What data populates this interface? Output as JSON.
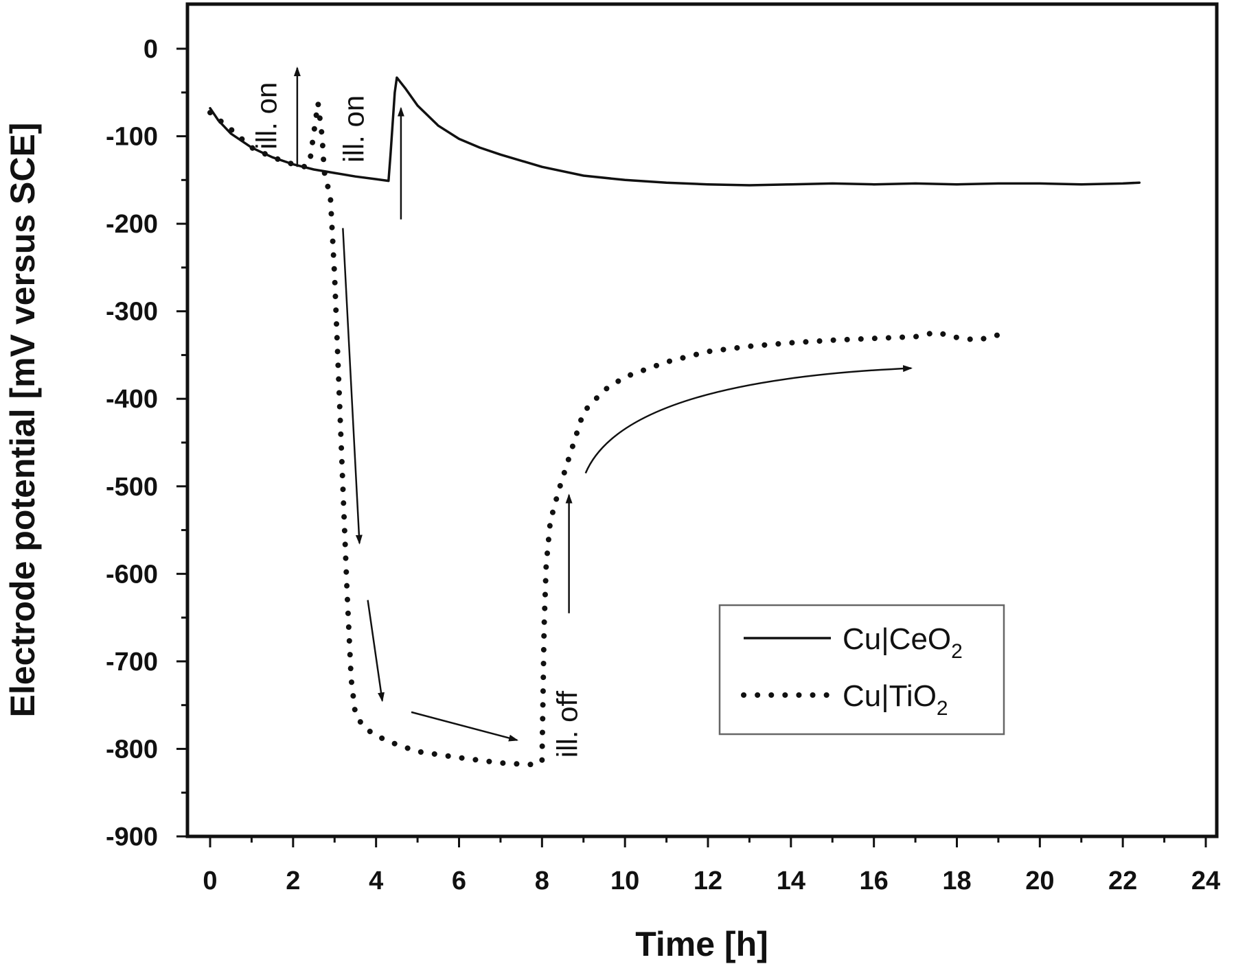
{
  "chart_data": {
    "type": "line",
    "xlabel": "Time [h]",
    "ylabel": "Electrode potential [mV versus SCE]",
    "xlim": [
      -1,
      24
    ],
    "ylim": [
      -900,
      50
    ],
    "xticks": [
      0,
      2,
      4,
      6,
      8,
      10,
      12,
      14,
      16,
      18,
      20,
      22,
      24
    ],
    "yticks": [
      0,
      -100,
      -200,
      -300,
      -400,
      -500,
      -600,
      -700,
      -800,
      -900
    ],
    "xtick_labels": [
      "0",
      "2",
      "4",
      "6",
      "8",
      "10",
      "12",
      "14",
      "16",
      "18",
      "20",
      "22",
      "24"
    ],
    "ytick_labels": [
      "0",
      "-100",
      "-200",
      "-300",
      "-400",
      "-500",
      "-600",
      "-700",
      "-800",
      "-900"
    ],
    "grid": false,
    "legend_position": "bottom-right",
    "series": [
      {
        "name": "Cu|CeO2",
        "legend_main": "Cu|CeO",
        "legend_sub": "2",
        "style": "solid",
        "color": "#111111",
        "x": [
          0,
          0.2,
          0.5,
          1,
          1.5,
          2,
          2.5,
          3,
          3.5,
          4,
          4.3,
          4.35,
          4.45,
          4.5,
          4.7,
          5,
          5.5,
          6,
          6.5,
          7,
          8,
          9,
          10,
          11,
          12,
          13,
          14,
          15,
          16,
          17,
          18,
          19,
          20,
          21,
          22,
          22.4
        ],
        "y": [
          -68,
          -82,
          -97,
          -113,
          -124,
          -132,
          -138,
          -142,
          -146,
          -149,
          -151,
          -120,
          -50,
          -33,
          -45,
          -65,
          -88,
          -103,
          -113,
          -121,
          -135,
          -145,
          -150,
          -153,
          -155,
          -156,
          -155,
          -154,
          -155,
          -154,
          -155,
          -154,
          -154,
          -155,
          -154,
          -153
        ]
      },
      {
        "name": "Cu|TiO2",
        "legend_main": "Cu|TiO",
        "legend_sub": "2",
        "style": "dotted",
        "color": "#111111",
        "x": [
          0,
          0.5,
          1,
          1.5,
          2,
          2.3,
          2.4,
          2.6,
          2.7,
          2.75,
          2.9,
          3.0,
          3.1,
          3.2,
          3.3,
          3.4,
          3.5,
          3.7,
          4.0,
          4.5,
          5,
          6,
          7,
          7.7,
          8.0,
          8.05,
          8.1,
          8.2,
          8.4,
          8.7,
          9,
          9.5,
          10,
          11,
          12,
          13,
          14,
          15,
          16,
          17,
          17.5,
          18,
          18.5,
          19
        ],
        "y": [
          -73,
          -92,
          -113,
          -124,
          -132,
          -135,
          -130,
          -62,
          -100,
          -140,
          -170,
          -260,
          -380,
          -500,
          -620,
          -720,
          -760,
          -775,
          -785,
          -795,
          -803,
          -810,
          -816,
          -818,
          -815,
          -660,
          -590,
          -540,
          -505,
          -460,
          -415,
          -390,
          -375,
          -358,
          -346,
          -340,
          -336,
          -333,
          -331,
          -329,
          -324,
          -330,
          -333,
          -327
        ]
      }
    ],
    "annotations": [
      {
        "text": "ill. on",
        "x": 1.6,
        "y": -115,
        "rotation": -90
      },
      {
        "text": "ill. on",
        "x": 3.7,
        "y": -130,
        "rotation": -90
      },
      {
        "text": "ill. off",
        "x": 8.85,
        "y": -810,
        "rotation": -90
      }
    ],
    "arrows": [
      {
        "from": [
          2.1,
          -135
        ],
        "to": [
          2.1,
          -22
        ]
      },
      {
        "from": [
          4.6,
          -195
        ],
        "to": [
          4.6,
          -68
        ]
      },
      {
        "from": [
          3.2,
          -205
        ],
        "to": [
          3.6,
          -565
        ]
      },
      {
        "from": [
          3.8,
          -630
        ],
        "to": [
          4.15,
          -745
        ]
      },
      {
        "from": [
          4.85,
          -758
        ],
        "to": [
          7.4,
          -790
        ]
      },
      {
        "from": [
          8.65,
          -645
        ],
        "to": [
          8.65,
          -510
        ]
      },
      {
        "from": [
          9.05,
          -485
        ],
        "to": [
          16.9,
          -365
        ],
        "curve": true
      }
    ]
  }
}
